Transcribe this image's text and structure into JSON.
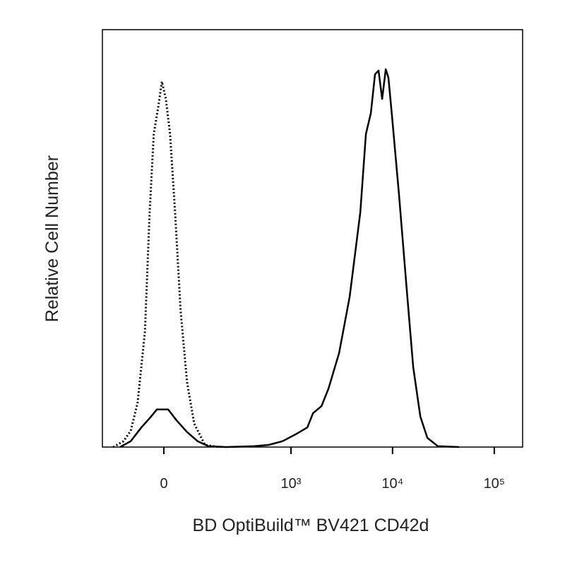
{
  "chart_data": {
    "type": "line",
    "xlabel": "BD OptiBuild™ BV421 CD42d",
    "ylabel": "Relative Cell Number",
    "xscale": "biexponential",
    "xlim": [
      -213,
      190000
    ],
    "ylim": [
      0,
      100
    ],
    "xticks": [
      0,
      {
        "value": 1000,
        "label": "10³"
      },
      {
        "value": 10000,
        "label": "10⁴"
      },
      {
        "value": 100000,
        "label": "10⁵"
      }
    ],
    "series": [
      {
        "color": "#000000",
        "dash": "dotted",
        "x": [
          -160,
          -118,
          -93,
          -71,
          -50,
          -37,
          -26,
          -14,
          -5,
          5,
          16,
          29,
          44,
          62,
          84,
          121,
          181
        ],
        "values": [
          0,
          1.4,
          3.9,
          10.7,
          27.6,
          56.3,
          75.0,
          81.7,
          87.6,
          83.4,
          75.0,
          56.3,
          32.5,
          15.6,
          5.6,
          0.5,
          0
        ]
      },
      {
        "color": "#000000",
        "dash": "solid",
        "x": [
          -131,
          -93,
          -60,
          -37,
          -18,
          11,
          33,
          62,
          95,
          134,
          216,
          430,
          598,
          826,
          1142,
          1452,
          1650,
          2000,
          2345,
          2978,
          3786,
          4820,
          5470,
          6125,
          6724,
          7289,
          7910,
          8571,
          9119,
          9888,
          11605,
          13617,
          15960,
          18758,
          21979,
          27911,
          45200
        ],
        "values": [
          0,
          1.4,
          4.7,
          6.9,
          9.0,
          9.0,
          6.4,
          3.6,
          1.4,
          0.2,
          0,
          0.2,
          0.5,
          1.4,
          3.2,
          4.7,
          8.1,
          9.8,
          14.0,
          22.5,
          36.0,
          56.3,
          75.0,
          80.0,
          89.3,
          90.2,
          83.4,
          90.5,
          88.5,
          79.2,
          60.2,
          39.4,
          19.1,
          7.3,
          2.2,
          0.2,
          0
        ]
      }
    ]
  }
}
